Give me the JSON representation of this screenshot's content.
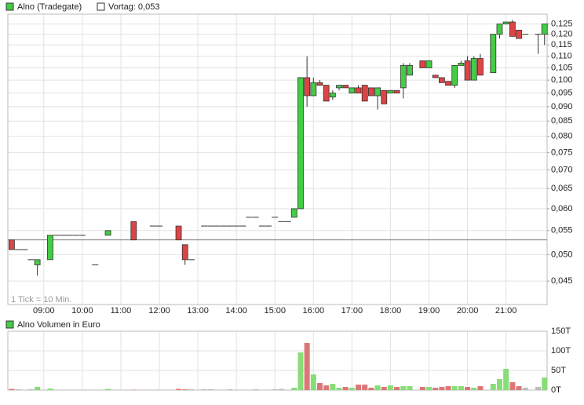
{
  "chart_data": [
    {
      "type": "candlestick",
      "title": "Alno (Tradegate)",
      "color": "#44cc44",
      "reference": {
        "value": 0.053,
        "label": "Vortag: 0,053"
      },
      "annotation": "1 Tick = 10 Min.",
      "log_y": true,
      "grid": true,
      "up_color": "#44cc44",
      "down_color": "#dd4444",
      "x": [
        490,
        500,
        510,
        520,
        530,
        550,
        560,
        570,
        580,
        590,
        600,
        620,
        640,
        680,
        710,
        720,
        750,
        760,
        770,
        790,
        800,
        810,
        820,
        830,
        840,
        850,
        860,
        870,
        880,
        890,
        900,
        910,
        920,
        930,
        940,
        950,
        960,
        970,
        980,
        990,
        1000,
        1010,
        1020,
        1030,
        1040,
        1050,
        1060,
        1070,
        1080,
        1090,
        1100,
        1110,
        1130,
        1140,
        1150,
        1160,
        1170,
        1180,
        1190,
        1200,
        1210,
        1220,
        1240,
        1250,
        1260,
        1270,
        1280,
        1290,
        1310,
        1320
      ],
      "open": [
        0.053,
        0.051,
        0.051,
        0.049,
        0.048,
        0.049,
        0.054,
        0.054,
        0.054,
        0.054,
        0.054,
        0.048,
        0.054,
        0.057,
        0.056,
        0.056,
        0.056,
        0.052,
        0.049,
        0.056,
        0.056,
        0.056,
        0.056,
        0.056,
        0.056,
        0.056,
        0.058,
        0.058,
        0.056,
        0.056,
        0.058,
        0.057,
        0.057,
        0.058,
        0.06,
        0.101,
        0.094,
        0.099,
        0.098,
        0.0935,
        0.097,
        0.098,
        0.095,
        0.097,
        0.098,
        0.097,
        0.094,
        0.096,
        0.095,
        0.096,
        0.097,
        0.102,
        0.108,
        0.105,
        0.102,
        0.101,
        0.0995,
        0.098,
        0.106,
        0.108,
        0.1,
        0.109,
        0.103,
        0.12,
        0.125,
        0.126,
        0.122,
        0.12,
        0.12,
        0.12
      ],
      "high": [
        0.053,
        0.051,
        0.051,
        0.049,
        0.049,
        0.054,
        0.054,
        0.054,
        0.054,
        0.054,
        0.054,
        0.048,
        0.055,
        0.057,
        0.056,
        0.056,
        0.056,
        0.052,
        0.049,
        0.056,
        0.056,
        0.056,
        0.056,
        0.056,
        0.056,
        0.056,
        0.058,
        0.058,
        0.056,
        0.056,
        0.058,
        0.057,
        0.057,
        0.06,
        0.101,
        0.11,
        0.101,
        0.1,
        0.098,
        0.096,
        0.098,
        0.098,
        0.097,
        0.098,
        0.098,
        0.097,
        0.097,
        0.096,
        0.096,
        0.096,
        0.107,
        0.107,
        0.108,
        0.108,
        0.102,
        0.101,
        0.0995,
        0.106,
        0.108,
        0.11,
        0.11,
        0.111,
        0.12,
        0.125,
        0.126,
        0.127,
        0.122,
        0.12,
        0.12,
        0.125
      ],
      "low": [
        0.051,
        0.051,
        0.051,
        0.049,
        0.046,
        0.049,
        0.054,
        0.054,
        0.054,
        0.054,
        0.054,
        0.048,
        0.054,
        0.053,
        0.056,
        0.056,
        0.053,
        0.048,
        0.049,
        0.056,
        0.056,
        0.056,
        0.056,
        0.056,
        0.056,
        0.056,
        0.058,
        0.058,
        0.056,
        0.056,
        0.058,
        0.057,
        0.057,
        0.058,
        0.06,
        0.09,
        0.094,
        0.098,
        0.092,
        0.0925,
        0.096,
        0.097,
        0.095,
        0.095,
        0.092,
        0.094,
        0.089,
        0.091,
        0.095,
        0.095,
        0.093,
        0.102,
        0.105,
        0.105,
        0.101,
        0.099,
        0.098,
        0.097,
        0.106,
        0.1,
        0.1,
        0.102,
        0.103,
        0.118,
        0.125,
        0.119,
        0.118,
        0.12,
        0.111,
        0.115
      ],
      "close": [
        0.051,
        0.051,
        0.051,
        0.049,
        0.049,
        0.054,
        0.054,
        0.054,
        0.054,
        0.054,
        0.054,
        0.048,
        0.055,
        0.053,
        0.056,
        0.056,
        0.053,
        0.049,
        0.049,
        0.056,
        0.056,
        0.056,
        0.056,
        0.056,
        0.056,
        0.056,
        0.058,
        0.058,
        0.056,
        0.056,
        0.058,
        0.057,
        0.057,
        0.06,
        0.101,
        0.094,
        0.099,
        0.098,
        0.092,
        0.095,
        0.098,
        0.097,
        0.097,
        0.095,
        0.092,
        0.094,
        0.097,
        0.091,
        0.096,
        0.095,
        0.106,
        0.106,
        0.105,
        0.108,
        0.101,
        0.099,
        0.098,
        0.106,
        0.107,
        0.1,
        0.109,
        0.102,
        0.12,
        0.125,
        0.126,
        0.119,
        0.118,
        0.12,
        0.12,
        0.125
      ],
      "xlim": [
        484,
        1324
      ],
      "xticks": [
        {
          "value": 540,
          "label": "09:00"
        },
        {
          "value": 600,
          "label": "10:00"
        },
        {
          "value": 660,
          "label": "11:00"
        },
        {
          "value": 720,
          "label": "12:00"
        },
        {
          "value": 780,
          "label": "13:00"
        },
        {
          "value": 840,
          "label": "14:00"
        },
        {
          "value": 900,
          "label": "15:00"
        },
        {
          "value": 960,
          "label": "16:00"
        },
        {
          "value": 1020,
          "label": "17:00"
        },
        {
          "value": 1080,
          "label": "18:00"
        },
        {
          "value": 1140,
          "label": "19:00"
        },
        {
          "value": 1200,
          "label": "20:00"
        },
        {
          "value": 1260,
          "label": "21:00"
        }
      ],
      "ylim": [
        0.041,
        0.13
      ],
      "yticks": [
        {
          "value": 0.045,
          "label": "0,045"
        },
        {
          "value": 0.05,
          "label": "0,050"
        },
        {
          "value": 0.055,
          "label": "0,055"
        },
        {
          "value": 0.06,
          "label": "0,060"
        },
        {
          "value": 0.065,
          "label": "0,065"
        },
        {
          "value": 0.07,
          "label": "0,070"
        },
        {
          "value": 0.075,
          "label": "0,075"
        },
        {
          "value": 0.08,
          "label": "0,080"
        },
        {
          "value": 0.085,
          "label": "0,085"
        },
        {
          "value": 0.09,
          "label": "0,090"
        },
        {
          "value": 0.095,
          "label": "0,095"
        },
        {
          "value": 0.1,
          "label": "0,100"
        },
        {
          "value": 0.105,
          "label": "0,105"
        },
        {
          "value": 0.11,
          "label": "0,110"
        },
        {
          "value": 0.115,
          "label": "0,115"
        },
        {
          "value": 0.12,
          "label": "0,120"
        },
        {
          "value": 0.125,
          "label": "0,125"
        }
      ]
    },
    {
      "type": "bar",
      "title": "Alno Volumen in Euro",
      "color": "#44cc44",
      "grid": true,
      "up_color": "#88dd77",
      "down_color": "#dd7777",
      "flat_color": "#bbbbbb",
      "x": [
        490,
        500,
        510,
        520,
        530,
        550,
        560,
        570,
        580,
        590,
        600,
        620,
        640,
        680,
        710,
        720,
        750,
        760,
        770,
        790,
        800,
        810,
        820,
        830,
        840,
        850,
        860,
        870,
        880,
        890,
        900,
        910,
        920,
        930,
        940,
        950,
        960,
        970,
        980,
        990,
        1000,
        1010,
        1020,
        1030,
        1040,
        1050,
        1060,
        1070,
        1080,
        1090,
        1100,
        1110,
        1130,
        1140,
        1150,
        1160,
        1170,
        1180,
        1190,
        1200,
        1210,
        1220,
        1240,
        1250,
        1260,
        1270,
        1280,
        1290,
        1310,
        1320
      ],
      "values": [
        3,
        2,
        1,
        2,
        8,
        4,
        1,
        1,
        1,
        1,
        1,
        0.5,
        3,
        1,
        1,
        1,
        3,
        2,
        2,
        2,
        2,
        1,
        1,
        2,
        1,
        1,
        1,
        2,
        1,
        1,
        2,
        3,
        1,
        6,
        96,
        120,
        40,
        18,
        12,
        16,
        6,
        8,
        6,
        14,
        14,
        6,
        12,
        8,
        12,
        8,
        10,
        10,
        8,
        8,
        6,
        8,
        10,
        10,
        10,
        8,
        6,
        10,
        16,
        28,
        54,
        20,
        10,
        6,
        8,
        32
      ],
      "xlim": [
        484,
        1324
      ],
      "ylim": [
        0,
        150
      ],
      "yticks": [
        {
          "value": 0,
          "label": "0T"
        },
        {
          "value": 50,
          "label": "50T"
        },
        {
          "value": 100,
          "label": "100T"
        },
        {
          "value": 150,
          "label": "150T"
        }
      ]
    }
  ]
}
